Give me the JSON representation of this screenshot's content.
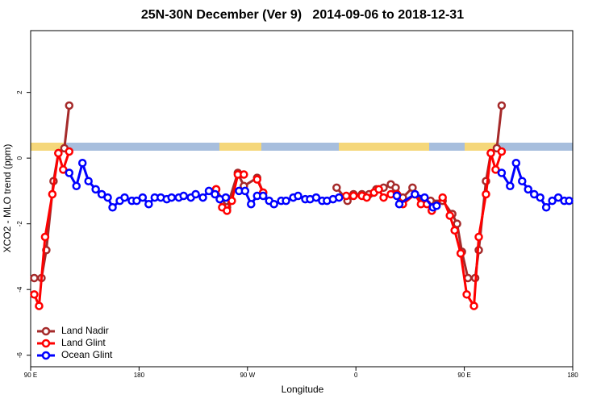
{
  "chart_data": {
    "type": "line",
    "title": "25N-30N December (Ver 9)   2014-09-06 to 2018-12-31",
    "x_label": "Longitude",
    "y_label": "XCO2 - MLO trend (ppm)",
    "xlim": [
      90,
      540
    ],
    "ylim": [
      -6.35,
      3.88
    ],
    "xticks": [
      {
        "value": 90,
        "label": "90 E"
      },
      180,
      {
        "value": 270,
        "label": "90 W"
      },
      {
        "value": 360,
        "label": "0"
      },
      {
        "value": 450,
        "label": "90 E"
      },
      {
        "value": 540,
        "label": "180"
      }
    ],
    "yticks": [
      -6,
      -4,
      -2,
      0,
      2
    ],
    "legend": "bottom-left",
    "series": [
      {
        "name": "Land Nadir",
        "color": "#a52a2a",
        "x": [
          93,
          99,
          103,
          109,
          113,
          118,
          122,
          null,
          244,
          253,
          262,
          267,
          278,
          283,
          null,
          344,
          353,
          358,
          365,
          371,
          377,
          383,
          389,
          393,
          399,
          407,
          415,
          422,
          432,
          440,
          444,
          448,
          453,
          459,
          462,
          468,
          472,
          477,
          481
        ],
        "values": [
          -3.65,
          -3.65,
          -2.8,
          -0.7,
          0.15,
          0.3,
          1.6,
          null,
          -0.95,
          -1.5,
          -0.45,
          -0.85,
          -0.6,
          -1.05,
          null,
          -0.9,
          -1.3,
          -1.1,
          -1.1,
          -1.1,
          -0.95,
          -0.9,
          -0.8,
          -0.9,
          -1.2,
          -0.9,
          -1.35,
          -1.3,
          -1.3,
          -1.7,
          -2.0,
          -2.85,
          -3.65,
          -3.65,
          -2.8,
          -0.7,
          0.15,
          0.3,
          1.6
        ]
      },
      {
        "name": "Land Glint",
        "color": "#ff0000",
        "x": [
          93,
          97,
          102,
          108,
          113,
          117,
          122,
          null,
          244,
          249,
          253,
          257,
          262,
          267,
          null,
          278,
          283,
          null,
          352,
          358,
          365,
          369,
          375,
          379,
          383,
          389,
          394,
          399,
          409,
          414,
          419,
          423,
          432,
          438,
          442,
          447,
          452,
          458,
          462,
          468,
          472,
          476,
          481
        ],
        "values": [
          -4.15,
          -4.5,
          -2.4,
          -1.1,
          0.15,
          -0.35,
          0.2,
          null,
          -0.95,
          -1.5,
          -1.6,
          -1.3,
          -0.5,
          -0.5,
          null,
          -0.65,
          -1.05,
          null,
          -1.15,
          -1.15,
          -1.15,
          -1.2,
          -1.05,
          -0.95,
          -1.2,
          -1.1,
          -1.1,
          -1.4,
          -1.1,
          -1.4,
          -1.4,
          -1.6,
          -1.2,
          -1.75,
          -2.2,
          -2.9,
          -4.15,
          -4.5,
          -2.4,
          -1.1,
          0.15,
          -0.35,
          0.2
        ]
      },
      {
        "name": "Ocean Glint",
        "color": "#0000ff",
        "x": [
          122,
          128,
          133,
          138,
          144,
          149,
          154,
          158,
          164,
          168,
          174,
          178,
          183,
          188,
          193,
          198,
          203,
          207,
          213,
          217,
          223,
          227,
          233,
          238,
          243,
          247,
          252,
          null,
          263,
          268,
          273,
          278,
          283,
          288,
          292,
          298,
          302,
          308,
          312,
          318,
          322,
          327,
          332,
          336,
          341,
          346,
          null,
          394,
          396,
          409,
          417,
          424,
          427,
          null,
          481,
          488,
          493,
          498,
          503,
          508,
          513,
          518,
          523,
          528,
          533,
          537
        ],
        "values": [
          -0.45,
          -0.85,
          -0.15,
          -0.7,
          -0.95,
          -1.1,
          -1.2,
          -1.5,
          -1.3,
          -1.2,
          -1.3,
          -1.3,
          -1.2,
          -1.4,
          -1.2,
          -1.2,
          -1.25,
          -1.2,
          -1.2,
          -1.15,
          -1.2,
          -1.1,
          -1.2,
          -1.0,
          -1.1,
          -1.25,
          -1.2,
          null,
          -1.0,
          -1.0,
          -1.4,
          -1.15,
          -1.15,
          -1.3,
          -1.4,
          -1.3,
          -1.3,
          -1.2,
          -1.15,
          -1.25,
          -1.25,
          -1.2,
          -1.3,
          -1.3,
          -1.25,
          -1.2,
          null,
          -1.15,
          -1.4,
          -1.1,
          -1.2,
          -1.5,
          -1.45,
          null,
          -0.45,
          -0.85,
          -0.15,
          -0.7,
          -0.95,
          -1.1,
          -1.2,
          -1.5,
          -1.3,
          -1.2,
          -1.3,
          -1.3
        ]
      }
    ]
  }
}
